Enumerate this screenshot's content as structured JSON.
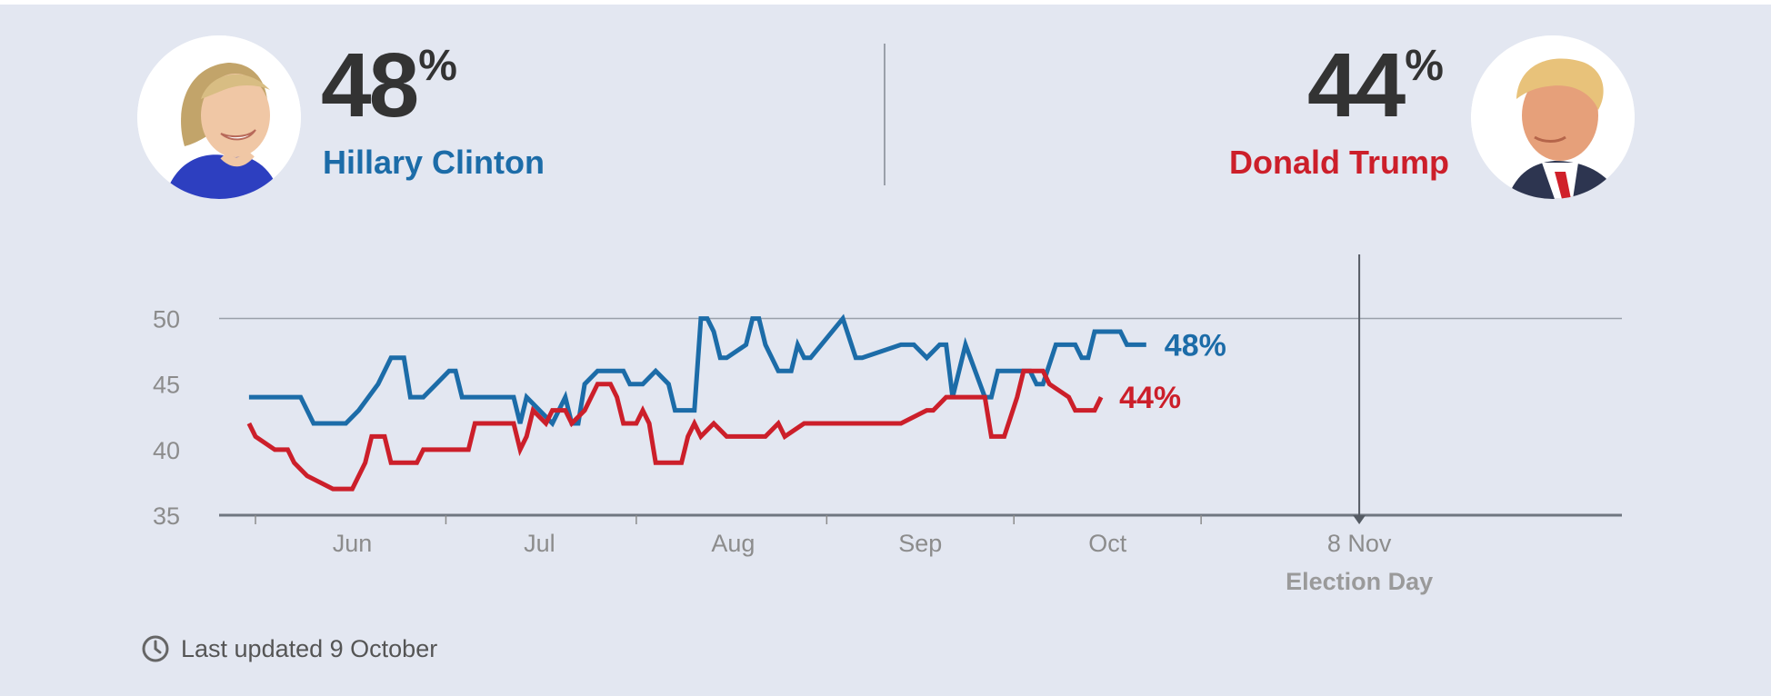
{
  "candidates": {
    "left": {
      "name": "Hillary Clinton",
      "pct": "48",
      "pct_symbol": "%",
      "color": "#1c6ca8"
    },
    "right": {
      "name": "Donald Trump",
      "pct": "44",
      "pct_symbol": "%",
      "color": "#cc1f2a"
    }
  },
  "footer": {
    "last_updated": "Last updated 9 October",
    "icon": "clock-icon"
  },
  "chart_data": {
    "type": "line",
    "y_ticks": [
      50,
      45,
      40,
      35
    ],
    "ylim": [
      35,
      50
    ],
    "x_ticks": [
      {
        "label": "Jun",
        "day": 0
      },
      {
        "label": "Jul",
        "day": 29
      },
      {
        "label": "Aug",
        "day": 59
      },
      {
        "label": "Sep",
        "day": 88
      },
      {
        "label": "Oct",
        "day": 117
      },
      {
        "label": "8 Nov",
        "day": 156
      }
    ],
    "event": {
      "label": "Election Day",
      "date_label": "8 Nov"
    },
    "grid": "horizontal line at 50",
    "series": [
      {
        "name": "Hillary Clinton",
        "color": "#1c6ca8",
        "end_label": "48%",
        "points": [
          [
            -16,
            44
          ],
          [
            -8,
            44
          ],
          [
            -6,
            42
          ],
          [
            -1,
            42
          ],
          [
            1,
            43
          ],
          [
            4,
            45
          ],
          [
            6,
            47
          ],
          [
            8,
            47
          ],
          [
            9,
            44
          ],
          [
            11,
            44
          ],
          [
            13,
            45
          ],
          [
            15,
            46
          ],
          [
            16,
            46
          ],
          [
            17,
            44
          ],
          [
            25,
            44
          ],
          [
            26,
            42
          ],
          [
            27,
            44
          ],
          [
            31,
            42
          ],
          [
            33,
            44
          ],
          [
            34,
            42
          ],
          [
            35,
            42
          ],
          [
            36,
            45
          ],
          [
            38,
            46
          ],
          [
            42,
            46
          ],
          [
            43,
            45
          ],
          [
            45,
            45
          ],
          [
            47,
            46
          ],
          [
            49,
            45
          ],
          [
            50,
            43
          ],
          [
            53,
            43
          ],
          [
            54,
            50
          ],
          [
            55,
            50
          ],
          [
            56,
            49
          ],
          [
            57,
            47
          ],
          [
            58,
            47
          ],
          [
            61,
            48
          ],
          [
            62,
            50
          ],
          [
            63,
            50
          ],
          [
            64,
            48
          ],
          [
            66,
            46
          ],
          [
            68,
            46
          ],
          [
            69,
            48
          ],
          [
            70,
            47
          ],
          [
            71,
            47
          ],
          [
            76,
            50
          ],
          [
            78,
            47
          ],
          [
            79,
            47
          ],
          [
            85,
            48
          ],
          [
            87,
            48
          ],
          [
            89,
            47
          ],
          [
            91,
            48
          ],
          [
            92,
            48
          ],
          [
            93,
            44
          ],
          [
            95,
            48
          ],
          [
            98,
            44
          ],
          [
            99,
            44
          ],
          [
            100,
            46
          ],
          [
            105,
            46
          ],
          [
            106,
            45
          ],
          [
            107,
            45
          ],
          [
            109,
            48
          ],
          [
            112,
            48
          ],
          [
            113,
            47
          ],
          [
            114,
            47
          ],
          [
            115,
            49
          ],
          [
            119,
            49
          ],
          [
            120,
            48
          ],
          [
            123,
            48
          ]
        ]
      },
      {
        "name": "Donald Trump",
        "color": "#cc1f2a",
        "end_label": "44%",
        "points": [
          [
            -16,
            42
          ],
          [
            -15,
            41
          ],
          [
            -12,
            40
          ],
          [
            -10,
            40
          ],
          [
            -9,
            39
          ],
          [
            -7,
            38
          ],
          [
            -3,
            37
          ],
          [
            0,
            37
          ],
          [
            2,
            39
          ],
          [
            3,
            41
          ],
          [
            5,
            41
          ],
          [
            6,
            39
          ],
          [
            10,
            39
          ],
          [
            11,
            40
          ],
          [
            18,
            40
          ],
          [
            19,
            42
          ],
          [
            25,
            42
          ],
          [
            26,
            40
          ],
          [
            27,
            41
          ],
          [
            28,
            43
          ],
          [
            30,
            42
          ],
          [
            31,
            43
          ],
          [
            33,
            43
          ],
          [
            34,
            42
          ],
          [
            36,
            43
          ],
          [
            38,
            45
          ],
          [
            40,
            45
          ],
          [
            41,
            44
          ],
          [
            42,
            42
          ],
          [
            44,
            42
          ],
          [
            45,
            43
          ],
          [
            46,
            42
          ],
          [
            47,
            39
          ],
          [
            51,
            39
          ],
          [
            52,
            41
          ],
          [
            53,
            42
          ],
          [
            54,
            41
          ],
          [
            56,
            42
          ],
          [
            58,
            41
          ],
          [
            64,
            41
          ],
          [
            66,
            42
          ],
          [
            67,
            41
          ],
          [
            70,
            42
          ],
          [
            85,
            42
          ],
          [
            89,
            43
          ],
          [
            90,
            43
          ],
          [
            92,
            44
          ],
          [
            98,
            44
          ],
          [
            99,
            41
          ],
          [
            101,
            41
          ],
          [
            103,
            44
          ],
          [
            104,
            46
          ],
          [
            107,
            46
          ],
          [
            108,
            45
          ],
          [
            111,
            44
          ],
          [
            112,
            43
          ],
          [
            115,
            43
          ],
          [
            116,
            44
          ]
        ]
      }
    ]
  }
}
